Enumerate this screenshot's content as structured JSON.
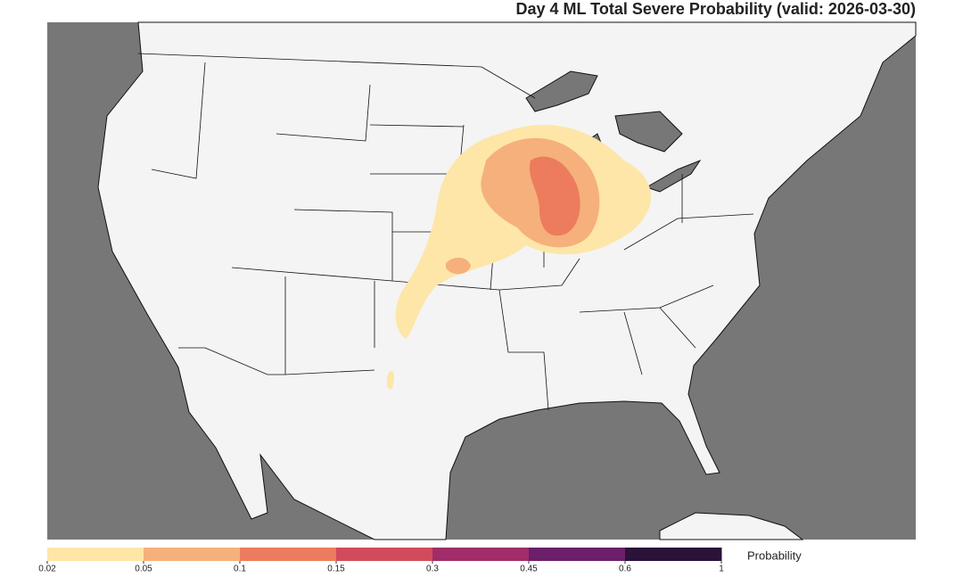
{
  "title": "Day 4 ML Total Severe Probability (valid: 2026-03-30)",
  "colorbar": {
    "label": "Probability",
    "ticks": [
      0.02,
      0.05,
      0.1,
      0.15,
      0.3,
      0.45,
      0.6,
      1
    ],
    "colors": [
      "#fde6a8",
      "#f6b07b",
      "#ec7c5d",
      "#d24b5b",
      "#a02d69",
      "#6b1f6b",
      "#2b1238"
    ]
  }
}
